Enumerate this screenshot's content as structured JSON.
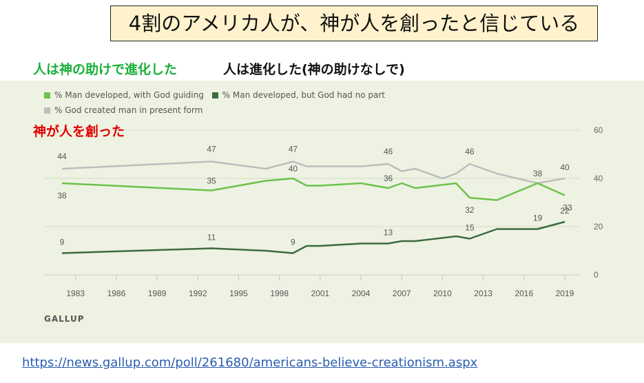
{
  "title": "4割のアメリカ人が、神が人を創ったと信じている",
  "annotations": {
    "god_guiding": "人は神の助けで進化した",
    "no_god": "人は進化した(神の助けなしで)",
    "creation": "神が人を創った"
  },
  "source": "GALLUP",
  "url": "https://news.gallup.com/poll/261680/americans-believe-creationism.aspx",
  "colors": {
    "god_guiding": "#6cc24a",
    "no_god": "#3a6b3e",
    "creation": "#bdbdbd",
    "panel": "#eef2e2"
  },
  "chart_data": {
    "type": "line",
    "xlabel": "",
    "ylabel": "",
    "xlim": [
      1981,
      2020
    ],
    "ylim": [
      0,
      60
    ],
    "grid": true,
    "legend_position": "top-left",
    "x_ticks": [
      1983,
      1986,
      1989,
      1992,
      1995,
      1998,
      2001,
      2004,
      2007,
      2010,
      2013,
      2016,
      2019
    ],
    "y_ticks": [
      0,
      20,
      40,
      60
    ],
    "series": [
      {
        "key": "creation",
        "name": "% God created man in present form",
        "points": [
          [
            1982,
            44
          ],
          [
            1993,
            47
          ],
          [
            1997,
            44
          ],
          [
            1999,
            47
          ],
          [
            2000,
            45
          ],
          [
            2001,
            45
          ],
          [
            2004,
            45
          ],
          [
            2006,
            46
          ],
          [
            2007,
            43
          ],
          [
            2008,
            44
          ],
          [
            2010,
            40
          ],
          [
            2011,
            42
          ],
          [
            2012,
            46
          ],
          [
            2014,
            42
          ],
          [
            2017,
            38
          ],
          [
            2019,
            40
          ]
        ],
        "labels": [
          [
            1982,
            44
          ],
          [
            1993,
            47
          ],
          [
            1999,
            47
          ],
          [
            2006,
            46
          ],
          [
            2012,
            46
          ],
          [
            2019,
            40
          ]
        ]
      },
      {
        "key": "god_guiding",
        "name": "% Man developed, with God guiding",
        "points": [
          [
            1982,
            38
          ],
          [
            1993,
            35
          ],
          [
            1997,
            39
          ],
          [
            1999,
            40
          ],
          [
            2000,
            37
          ],
          [
            2001,
            37
          ],
          [
            2004,
            38
          ],
          [
            2006,
            36
          ],
          [
            2007,
            38
          ],
          [
            2008,
            36
          ],
          [
            2011,
            38
          ],
          [
            2012,
            32
          ],
          [
            2014,
            31
          ],
          [
            2017,
            38
          ],
          [
            2019,
            33
          ]
        ],
        "labels": [
          [
            1982,
            38
          ],
          [
            1993,
            35
          ],
          [
            1999,
            40
          ],
          [
            2006,
            36
          ],
          [
            2012,
            32
          ],
          [
            2017,
            38
          ],
          [
            2019,
            33
          ]
        ]
      },
      {
        "key": "no_god",
        "name": "% Man developed, but God had no part",
        "points": [
          [
            1982,
            9
          ],
          [
            1993,
            11
          ],
          [
            1997,
            10
          ],
          [
            1999,
            9
          ],
          [
            2000,
            12
          ],
          [
            2001,
            12
          ],
          [
            2004,
            13
          ],
          [
            2006,
            13
          ],
          [
            2007,
            14
          ],
          [
            2008,
            14
          ],
          [
            2011,
            16
          ],
          [
            2012,
            15
          ],
          [
            2014,
            19
          ],
          [
            2017,
            19
          ],
          [
            2019,
            22
          ]
        ],
        "labels": [
          [
            1982,
            9
          ],
          [
            1993,
            11
          ],
          [
            1999,
            9
          ],
          [
            2006,
            13
          ],
          [
            2012,
            15
          ],
          [
            2017,
            19
          ],
          [
            2019,
            22
          ]
        ]
      }
    ]
  }
}
